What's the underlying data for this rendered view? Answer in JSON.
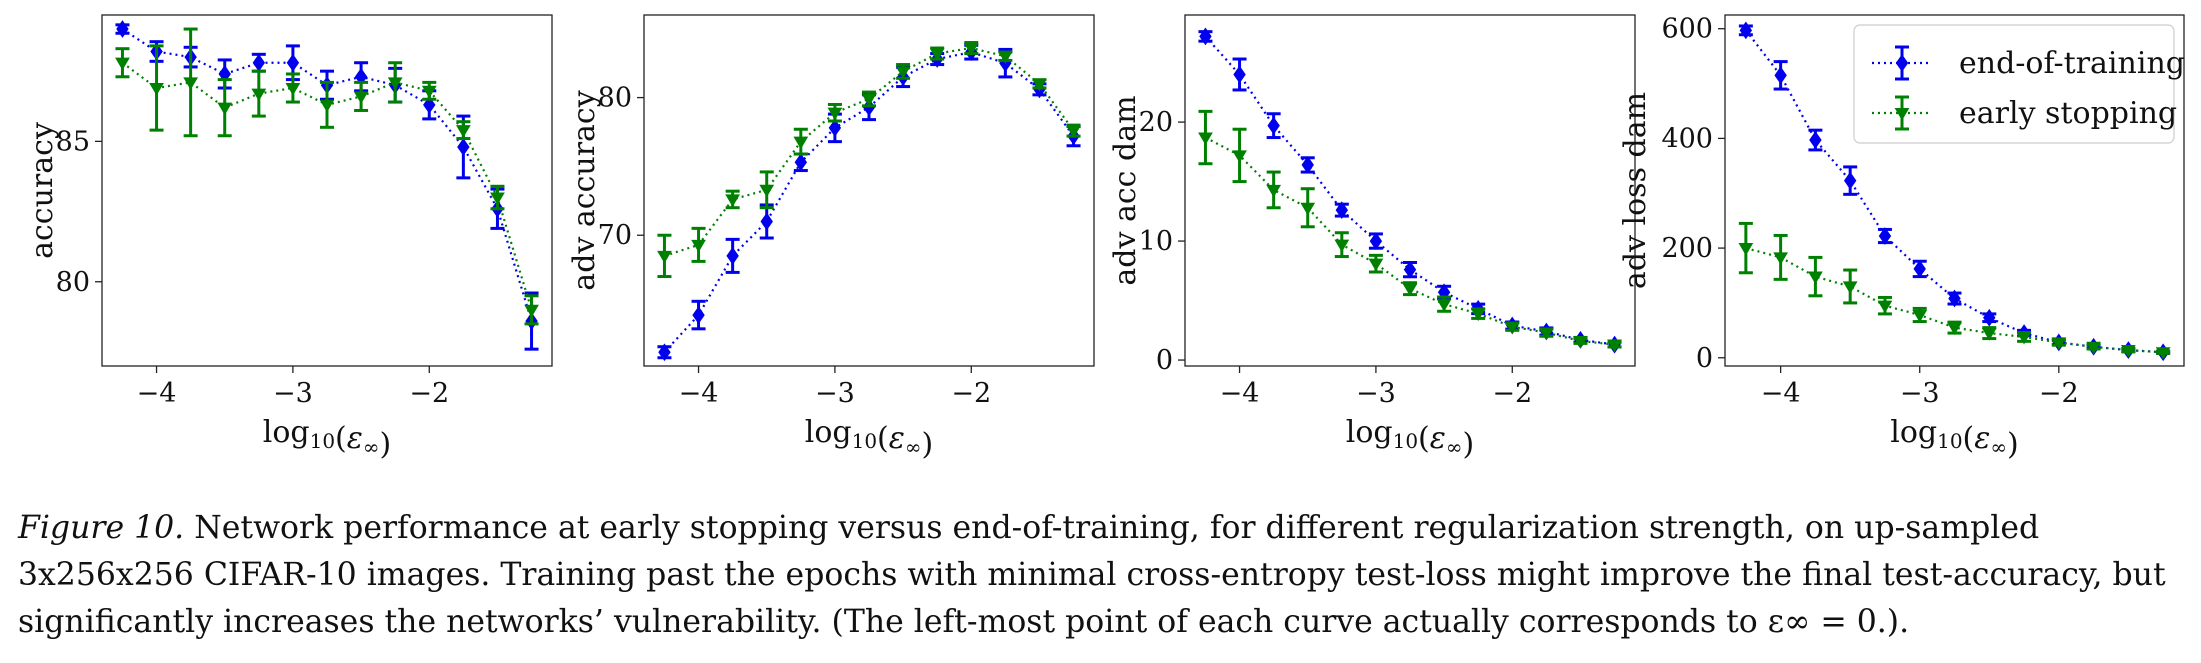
{
  "figure": {
    "caption_label": "Figure 10.",
    "caption_text": "Network performance at early stopping versus end-of-training, for different regularization strength, on up-sampled 3x256x256 CIFAR-10 images. Training past the epochs with minimal cross-entropy test-loss might improve the final test-accuracy, but significantly increases the networks’ vulnerability. (The left-most point of each curve actually corresponds to ε∞ = 0.)."
  },
  "chart_data": [
    {
      "type": "line",
      "title": "",
      "xlabel": "log10(ε∞)",
      "ylabel": "accuracy",
      "xlim": [
        -4.4,
        -1.1
      ],
      "ylim": [
        77.0,
        89.5
      ],
      "xticks": [
        -4,
        -3,
        -2
      ],
      "yticks": [
        80,
        85
      ],
      "x": [
        -4.25,
        -4.0,
        -3.75,
        -3.5,
        -3.25,
        -3.0,
        -2.75,
        -2.5,
        -2.25,
        -2.0,
        -1.75,
        -1.5,
        -1.25
      ],
      "series": [
        {
          "name": "end-of-training",
          "color": "#0000ee",
          "marker": "diamond",
          "values": [
            89.0,
            88.2,
            88.0,
            87.4,
            87.8,
            87.8,
            87.0,
            87.3,
            87.0,
            86.3,
            84.8,
            82.6,
            78.6
          ],
          "errors": [
            0.15,
            0.35,
            0.35,
            0.5,
            0.3,
            0.6,
            0.5,
            0.5,
            0.6,
            0.5,
            1.1,
            0.7,
            1.0
          ]
        },
        {
          "name": "early stopping",
          "color": "#008000",
          "marker": "triangle-down",
          "values": [
            87.8,
            86.9,
            87.1,
            86.2,
            86.7,
            86.9,
            86.3,
            86.6,
            87.1,
            86.8,
            85.4,
            83.0,
            79.0
          ],
          "errors": [
            0.5,
            1.5,
            1.9,
            1.0,
            0.8,
            0.5,
            0.8,
            0.5,
            0.7,
            0.3,
            0.3,
            0.4,
            0.5
          ]
        }
      ]
    },
    {
      "type": "line",
      "title": "",
      "xlabel": "log10(ε∞)",
      "ylabel": "adv accuracy",
      "xlim": [
        -4.4,
        -1.1
      ],
      "ylim": [
        60.5,
        86.0
      ],
      "xticks": [
        -4,
        -3,
        -2
      ],
      "yticks": [
        70,
        80
      ],
      "x": [
        -4.25,
        -4.0,
        -3.75,
        -3.5,
        -3.25,
        -3.0,
        -2.75,
        -2.5,
        -2.25,
        -2.0,
        -1.75,
        -1.5,
        -1.25
      ],
      "series": [
        {
          "name": "end-of-training",
          "color": "#0000ee",
          "marker": "diamond",
          "values": [
            61.5,
            64.2,
            68.5,
            71.0,
            75.3,
            77.8,
            79.3,
            81.5,
            82.8,
            83.3,
            82.5,
            80.6,
            77.2
          ],
          "errors": [
            0.4,
            1.0,
            1.2,
            1.2,
            0.6,
            1.0,
            0.9,
            0.7,
            0.4,
            0.5,
            1.0,
            0.4,
            0.7
          ]
        },
        {
          "name": "early stopping",
          "color": "#008000",
          "marker": "triangle-down",
          "values": [
            68.5,
            69.3,
            72.6,
            73.3,
            76.8,
            78.9,
            79.9,
            81.9,
            83.2,
            83.6,
            83.0,
            81.0,
            77.6
          ],
          "errors": [
            1.5,
            1.2,
            0.6,
            1.3,
            0.9,
            0.6,
            0.5,
            0.5,
            0.4,
            0.4,
            0.3,
            0.3,
            0.4
          ]
        }
      ]
    },
    {
      "type": "line",
      "title": "",
      "xlabel": "log10(ε∞)",
      "ylabel": "adv acc dam",
      "xlim": [
        -4.4,
        -1.1
      ],
      "ylim": [
        -0.5,
        29.0
      ],
      "xticks": [
        -4,
        -3,
        -2
      ],
      "yticks": [
        0,
        10,
        20
      ],
      "x": [
        -4.25,
        -4.0,
        -3.75,
        -3.5,
        -3.25,
        -3.0,
        -2.75,
        -2.5,
        -2.25,
        -2.0,
        -1.75,
        -1.5,
        -1.25
      ],
      "series": [
        {
          "name": "end-of-training",
          "color": "#0000ee",
          "marker": "diamond",
          "values": [
            27.2,
            24.0,
            19.7,
            16.4,
            12.6,
            10.0,
            7.6,
            5.7,
            4.3,
            2.9,
            2.4,
            1.7,
            1.3
          ],
          "errors": [
            0.4,
            1.3,
            1.0,
            0.6,
            0.5,
            0.6,
            0.6,
            0.5,
            0.4,
            0.3,
            0.3,
            0.2,
            0.2
          ]
        },
        {
          "name": "early stopping",
          "color": "#008000",
          "marker": "triangle-down",
          "values": [
            18.7,
            17.2,
            14.3,
            12.8,
            9.7,
            8.1,
            6.0,
            4.7,
            3.9,
            2.8,
            2.3,
            1.6,
            1.3
          ],
          "errors": [
            2.2,
            2.2,
            1.5,
            1.6,
            1.0,
            0.7,
            0.5,
            0.6,
            0.4,
            0.3,
            0.3,
            0.2,
            0.2
          ]
        }
      ]
    },
    {
      "type": "line",
      "title": "",
      "xlabel": "log10(ε∞)",
      "ylabel": "adv loss dam",
      "xlim": [
        -4.4,
        -1.1
      ],
      "ylim": [
        -15,
        625
      ],
      "xticks": [
        -4,
        -3,
        -2
      ],
      "yticks": [
        0,
        200,
        400,
        600
      ],
      "x": [
        -4.25,
        -4.0,
        -3.75,
        -3.5,
        -3.25,
        -3.0,
        -2.75,
        -2.5,
        -2.25,
        -2.0,
        -1.75,
        -1.5,
        -1.25
      ],
      "legend": {
        "position": "upper right"
      },
      "series": [
        {
          "name": "end-of-training",
          "color": "#0000ee",
          "marker": "diamond",
          "values": [
            597,
            515,
            397,
            323,
            222,
            162,
            108,
            73,
            45,
            28,
            20,
            14,
            10
          ],
          "errors": [
            8,
            25,
            18,
            25,
            12,
            14,
            10,
            7,
            5,
            4,
            3,
            3,
            2
          ]
        },
        {
          "name": "early stopping",
          "color": "#008000",
          "marker": "triangle-down",
          "values": [
            200,
            183,
            148,
            130,
            95,
            78,
            55,
            45,
            38,
            28,
            20,
            14,
            10
          ],
          "errors": [
            45,
            40,
            35,
            30,
            15,
            12,
            10,
            10,
            8,
            5,
            4,
            3,
            2
          ]
        }
      ]
    }
  ]
}
